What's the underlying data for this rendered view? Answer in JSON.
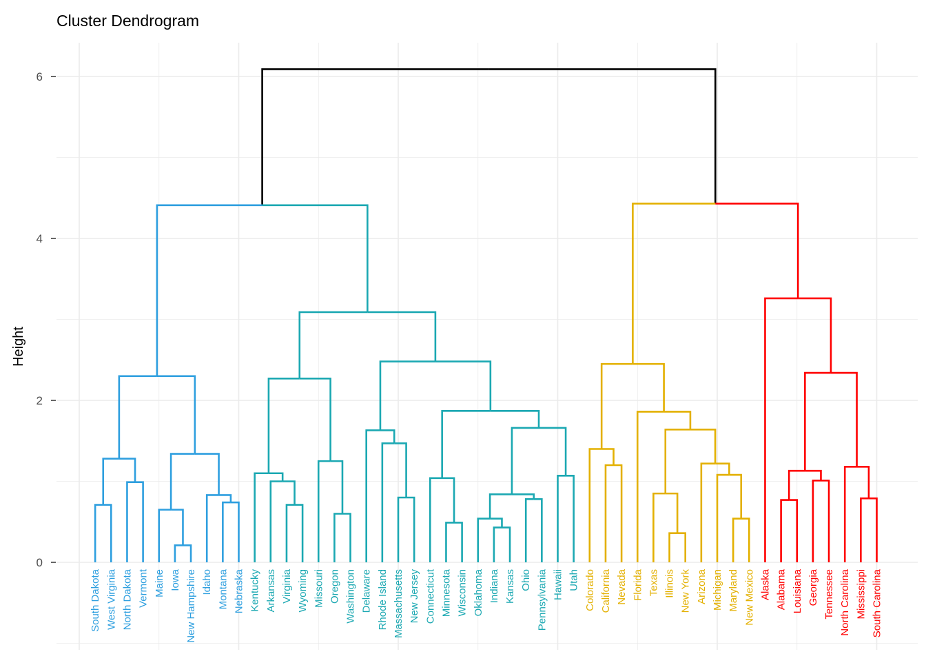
{
  "chart_data": {
    "type": "dendrogram",
    "title": "Cluster Dendrogram",
    "xlabel": "",
    "ylabel": "Height",
    "ylim": [
      -1.08,
      6.42
    ],
    "yticks": [
      0,
      2,
      4,
      6
    ],
    "grid": true,
    "cluster_colors": [
      "#2E9FDF",
      "#1BA8B2",
      "#E3B000",
      "#FF0000"
    ],
    "root_color": "#000000",
    "tree": {
      "h": 6.09,
      "c": [
        {
          "h": 4.41,
          "c": [
            {
              "k": 0,
              "h": 2.3,
              "c": [
                {
                  "h": 1.28,
                  "c": [
                    {
                      "h": 0.71,
                      "c": [
                        "South Dakota",
                        "West Virginia"
                      ]
                    },
                    {
                      "h": 0.99,
                      "c": [
                        "North Dakota",
                        "Vermont"
                      ]
                    }
                  ]
                },
                {
                  "h": 1.34,
                  "c": [
                    {
                      "h": 0.65,
                      "c": [
                        "Maine",
                        {
                          "h": 0.21,
                          "c": [
                            "Iowa",
                            "New Hampshire"
                          ]
                        }
                      ]
                    },
                    {
                      "h": 0.83,
                      "c": [
                        "Idaho",
                        {
                          "h": 0.74,
                          "c": [
                            "Montana",
                            "Nebraska"
                          ]
                        }
                      ]
                    }
                  ]
                }
              ]
            },
            {
              "k": 1,
              "h": 3.09,
              "c": [
                {
                  "h": 2.27,
                  "c": [
                    {
                      "h": 1.1,
                      "c": [
                        "Kentucky",
                        {
                          "h": 1.0,
                          "c": [
                            "Arkansas",
                            {
                              "h": 0.71,
                              "c": [
                                "Virginia",
                                "Wyoming"
                              ]
                            }
                          ]
                        }
                      ]
                    },
                    {
                      "h": 1.25,
                      "c": [
                        "Missouri",
                        {
                          "h": 0.6,
                          "c": [
                            "Oregon",
                            "Washington"
                          ]
                        }
                      ]
                    }
                  ]
                },
                {
                  "h": 2.48,
                  "c": [
                    {
                      "h": 1.63,
                      "c": [
                        "Delaware",
                        {
                          "h": 1.47,
                          "c": [
                            "Rhode Island",
                            {
                              "h": 0.8,
                              "c": [
                                "Massachusetts",
                                "New Jersey"
                              ]
                            }
                          ]
                        }
                      ]
                    },
                    {
                      "h": 1.87,
                      "c": [
                        {
                          "h": 1.04,
                          "c": [
                            "Connecticut",
                            {
                              "h": 0.49,
                              "c": [
                                "Minnesota",
                                "Wisconsin"
                              ]
                            }
                          ]
                        },
                        {
                          "h": 1.66,
                          "c": [
                            {
                              "h": 0.84,
                              "c": [
                                {
                                  "h": 0.54,
                                  "c": [
                                    "Oklahoma",
                                    {
                                      "h": 0.43,
                                      "c": [
                                        "Indiana",
                                        "Kansas"
                                      ]
                                    }
                                  ]
                                },
                                {
                                  "h": 0.78,
                                  "c": [
                                    "Ohio",
                                    "Pennsylvania"
                                  ]
                                }
                              ]
                            },
                            {
                              "h": 1.07,
                              "c": [
                                "Hawaii",
                                "Utah"
                              ]
                            }
                          ]
                        }
                      ]
                    }
                  ]
                }
              ]
            }
          ]
        },
        {
          "h": 4.43,
          "c": [
            {
              "k": 2,
              "h": 2.45,
              "c": [
                {
                  "h": 1.4,
                  "c": [
                    "Colorado",
                    {
                      "h": 1.2,
                      "c": [
                        "California",
                        "Nevada"
                      ]
                    }
                  ]
                },
                {
                  "h": 1.86,
                  "c": [
                    "Florida",
                    {
                      "h": 1.64,
                      "c": [
                        {
                          "h": 0.85,
                          "c": [
                            "Texas",
                            {
                              "h": 0.36,
                              "c": [
                                "Illinois",
                                "New York"
                              ]
                            }
                          ]
                        },
                        {
                          "h": 1.22,
                          "c": [
                            "Arizona",
                            {
                              "h": 1.08,
                              "c": [
                                "Michigan",
                                {
                                  "h": 0.54,
                                  "c": [
                                    "Maryland",
                                    "New Mexico"
                                  ]
                                }
                              ]
                            }
                          ]
                        }
                      ]
                    }
                  ]
                }
              ]
            },
            {
              "k": 3,
              "h": 3.26,
              "c": [
                "Alaska",
                {
                  "h": 2.34,
                  "c": [
                    {
                      "h": 1.13,
                      "c": [
                        {
                          "h": 0.77,
                          "c": [
                            "Alabama",
                            "Louisiana"
                          ]
                        },
                        {
                          "h": 1.01,
                          "c": [
                            "Georgia",
                            "Tennessee"
                          ]
                        }
                      ]
                    },
                    {
                      "h": 1.18,
                      "c": [
                        "North Carolina",
                        {
                          "h": 0.79,
                          "c": [
                            "Mississippi",
                            "South Carolina"
                          ]
                        }
                      ]
                    }
                  ]
                }
              ]
            }
          ]
        }
      ]
    }
  }
}
